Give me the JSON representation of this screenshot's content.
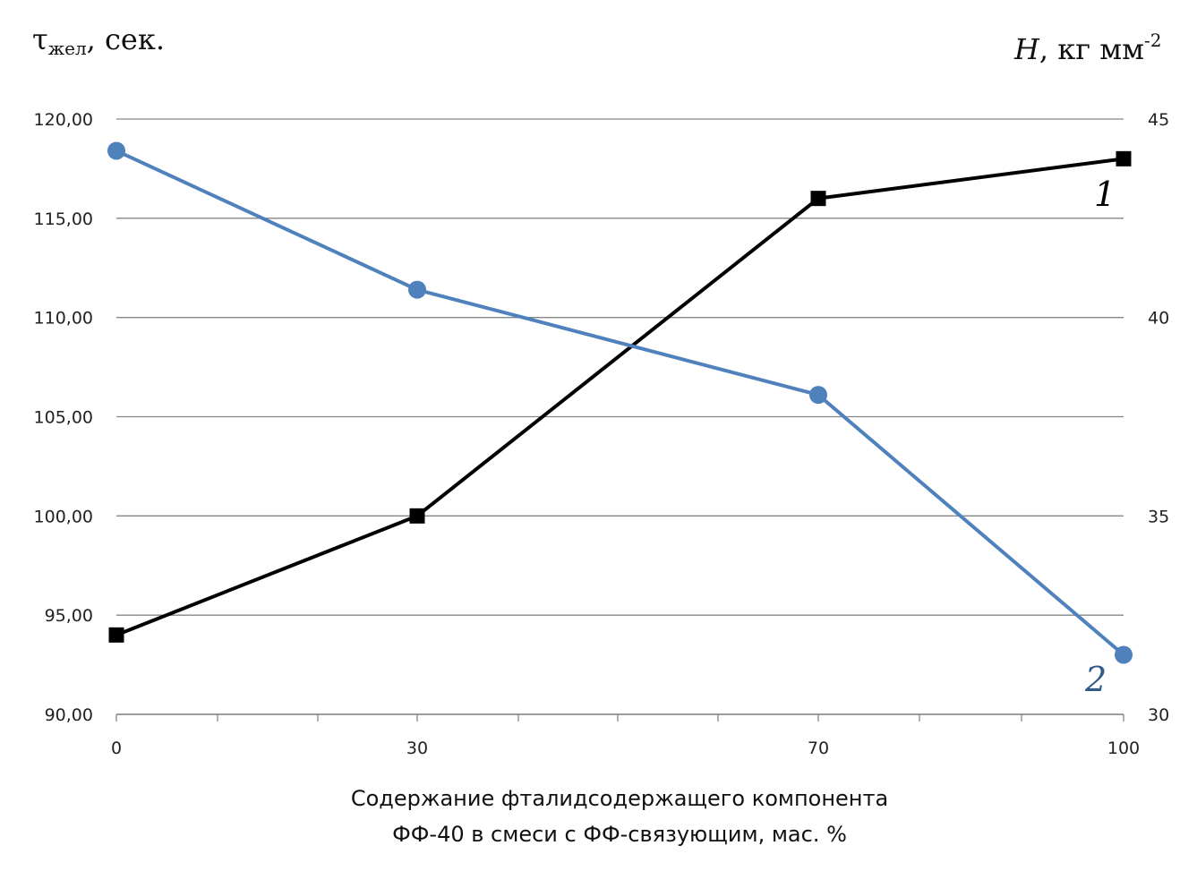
{
  "chart_data": {
    "type": "line",
    "x_categories": [
      "0",
      "30",
      "70",
      "100"
    ],
    "y_left": {
      "label_main": "τ",
      "label_sub": "жел",
      "label_rest": ", сек.",
      "ylim": [
        90,
        120
      ],
      "ticks": [
        "90,00",
        "95,00",
        "100,00",
        "105,00",
        "110,00",
        "115,00",
        "120,00"
      ],
      "tick_values": [
        90,
        95,
        100,
        105,
        110,
        115,
        120
      ]
    },
    "y_right": {
      "label_main": "H",
      "label_rest": ", кг мм",
      "label_sup": "-2",
      "ylim": [
        30,
        45
      ],
      "ticks": [
        "30",
        "35",
        "40",
        "45"
      ],
      "tick_values": [
        30,
        35,
        40,
        45
      ]
    },
    "xlabel_line1": "Содержание фталидсодержащего компонента",
    "xlabel_line2": "ФФ-40 в смеси с ФФ-связующим, мас. %",
    "series": [
      {
        "label": "1",
        "axis": "right",
        "color": "#000000",
        "marker": "square",
        "values": [
          32.0,
          35.0,
          43.0,
          44.0
        ]
      },
      {
        "label": "2",
        "axis": "left",
        "color": "#4f81bd",
        "marker": "circle",
        "values": [
          118.4,
          111.4,
          106.1,
          93.0
        ]
      }
    ],
    "grid": true
  }
}
